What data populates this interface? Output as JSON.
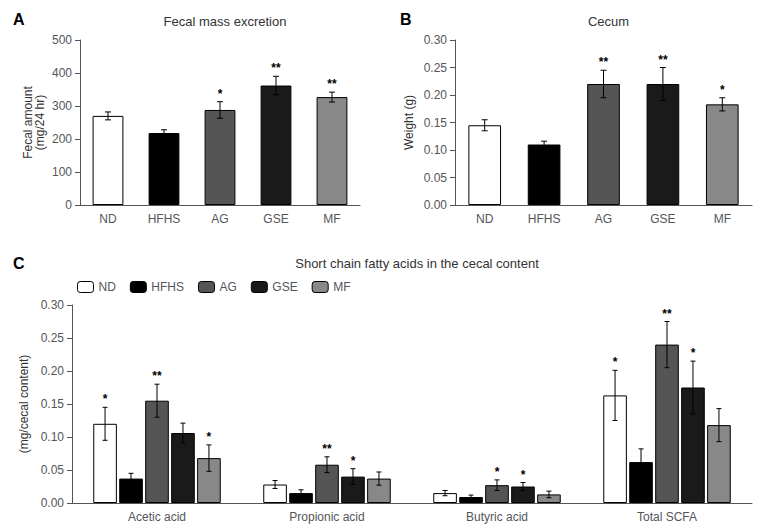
{
  "chart_data": [
    {
      "type": "bar",
      "annotation": "A",
      "title": "Fecal mass excretion",
      "ylabel": "Fecal amount\n(mg/24 hr)",
      "categories": [
        "ND",
        "HFHS",
        "AG",
        "GSE",
        "MF"
      ],
      "values": [
        270,
        218,
        288,
        362,
        327
      ],
      "errors": [
        12,
        10,
        25,
        28,
        15
      ],
      "sig": [
        null,
        null,
        "*",
        "**",
        "**"
      ],
      "colors": [
        "white",
        "black",
        "#555555",
        "#1a1a1a",
        "#888888"
      ],
      "ylim": [
        0,
        500
      ],
      "yticks": [
        0,
        100,
        200,
        300,
        400,
        500
      ],
      "grid": false
    },
    {
      "type": "bar",
      "annotation": "B",
      "title": "Cecum",
      "ylabel": "Weight (g)",
      "categories": [
        "ND",
        "HFHS",
        "AG",
        "GSE",
        "MF"
      ],
      "values": [
        0.145,
        0.11,
        0.22,
        0.22,
        0.183
      ],
      "errors": [
        0.01,
        0.006,
        0.025,
        0.03,
        0.012
      ],
      "sig": [
        null,
        null,
        "**",
        "**",
        "*"
      ],
      "colors": [
        "white",
        "black",
        "#555555",
        "#1a1a1a",
        "#888888"
      ],
      "ylim": [
        0,
        0.3
      ],
      "yticks": [
        {
          "value": 0,
          "label": "0.00"
        },
        0.05,
        {
          "value": 0.1,
          "label": "0.10"
        },
        0.15,
        {
          "value": 0.2,
          "label": "0.20"
        },
        0.25,
        {
          "value": 0.3,
          "label": "0.30"
        }
      ],
      "grid": false
    },
    {
      "type": "bar",
      "annotation": "C",
      "title": "Short chain fatty acids in the cecal content",
      "ylabel": "(mg/cecal content)",
      "categories": [
        "Acetic acid",
        "Propionic acid",
        "Butyric acid",
        "Total SCFA"
      ],
      "series": [
        {
          "name": "ND",
          "color": "white",
          "values": [
            0.12,
            0.028,
            0.015,
            0.163
          ],
          "errors": [
            0.025,
            0.006,
            0.004,
            0.038
          ],
          "sig": [
            "*",
            null,
            null,
            "*"
          ]
        },
        {
          "name": "HFHS",
          "color": "black",
          "values": [
            0.037,
            0.015,
            0.009,
            0.062
          ],
          "errors": [
            0.008,
            0.005,
            0.003,
            0.02
          ],
          "sig": [
            null,
            null,
            null,
            null
          ]
        },
        {
          "name": "AG",
          "color": "#555555",
          "values": [
            0.155,
            0.058,
            0.027,
            0.24
          ],
          "errors": [
            0.025,
            0.012,
            0.008,
            0.035
          ],
          "sig": [
            "**",
            "**",
            "*",
            "**"
          ]
        },
        {
          "name": "GSE",
          "color": "#1a1a1a",
          "values": [
            0.106,
            0.04,
            0.025,
            0.175
          ],
          "errors": [
            0.015,
            0.012,
            0.006,
            0.04
          ],
          "sig": [
            null,
            "*",
            "*",
            "*"
          ]
        },
        {
          "name": "MF",
          "color": "#888888",
          "values": [
            0.068,
            0.037,
            0.013,
            0.118
          ],
          "errors": [
            0.02,
            0.01,
            0.005,
            0.025
          ],
          "sig": [
            "*",
            null,
            null,
            null
          ]
        }
      ],
      "ylim": [
        0,
        0.3
      ],
      "yticks": [
        {
          "value": 0,
          "label": "0.00"
        },
        0.05,
        {
          "value": 0.1,
          "label": "0.10"
        },
        0.15,
        {
          "value": 0.2,
          "label": "0.20"
        },
        0.25,
        {
          "value": 0.3,
          "label": "0.30"
        }
      ],
      "legend": "upper left",
      "grid": false
    }
  ]
}
